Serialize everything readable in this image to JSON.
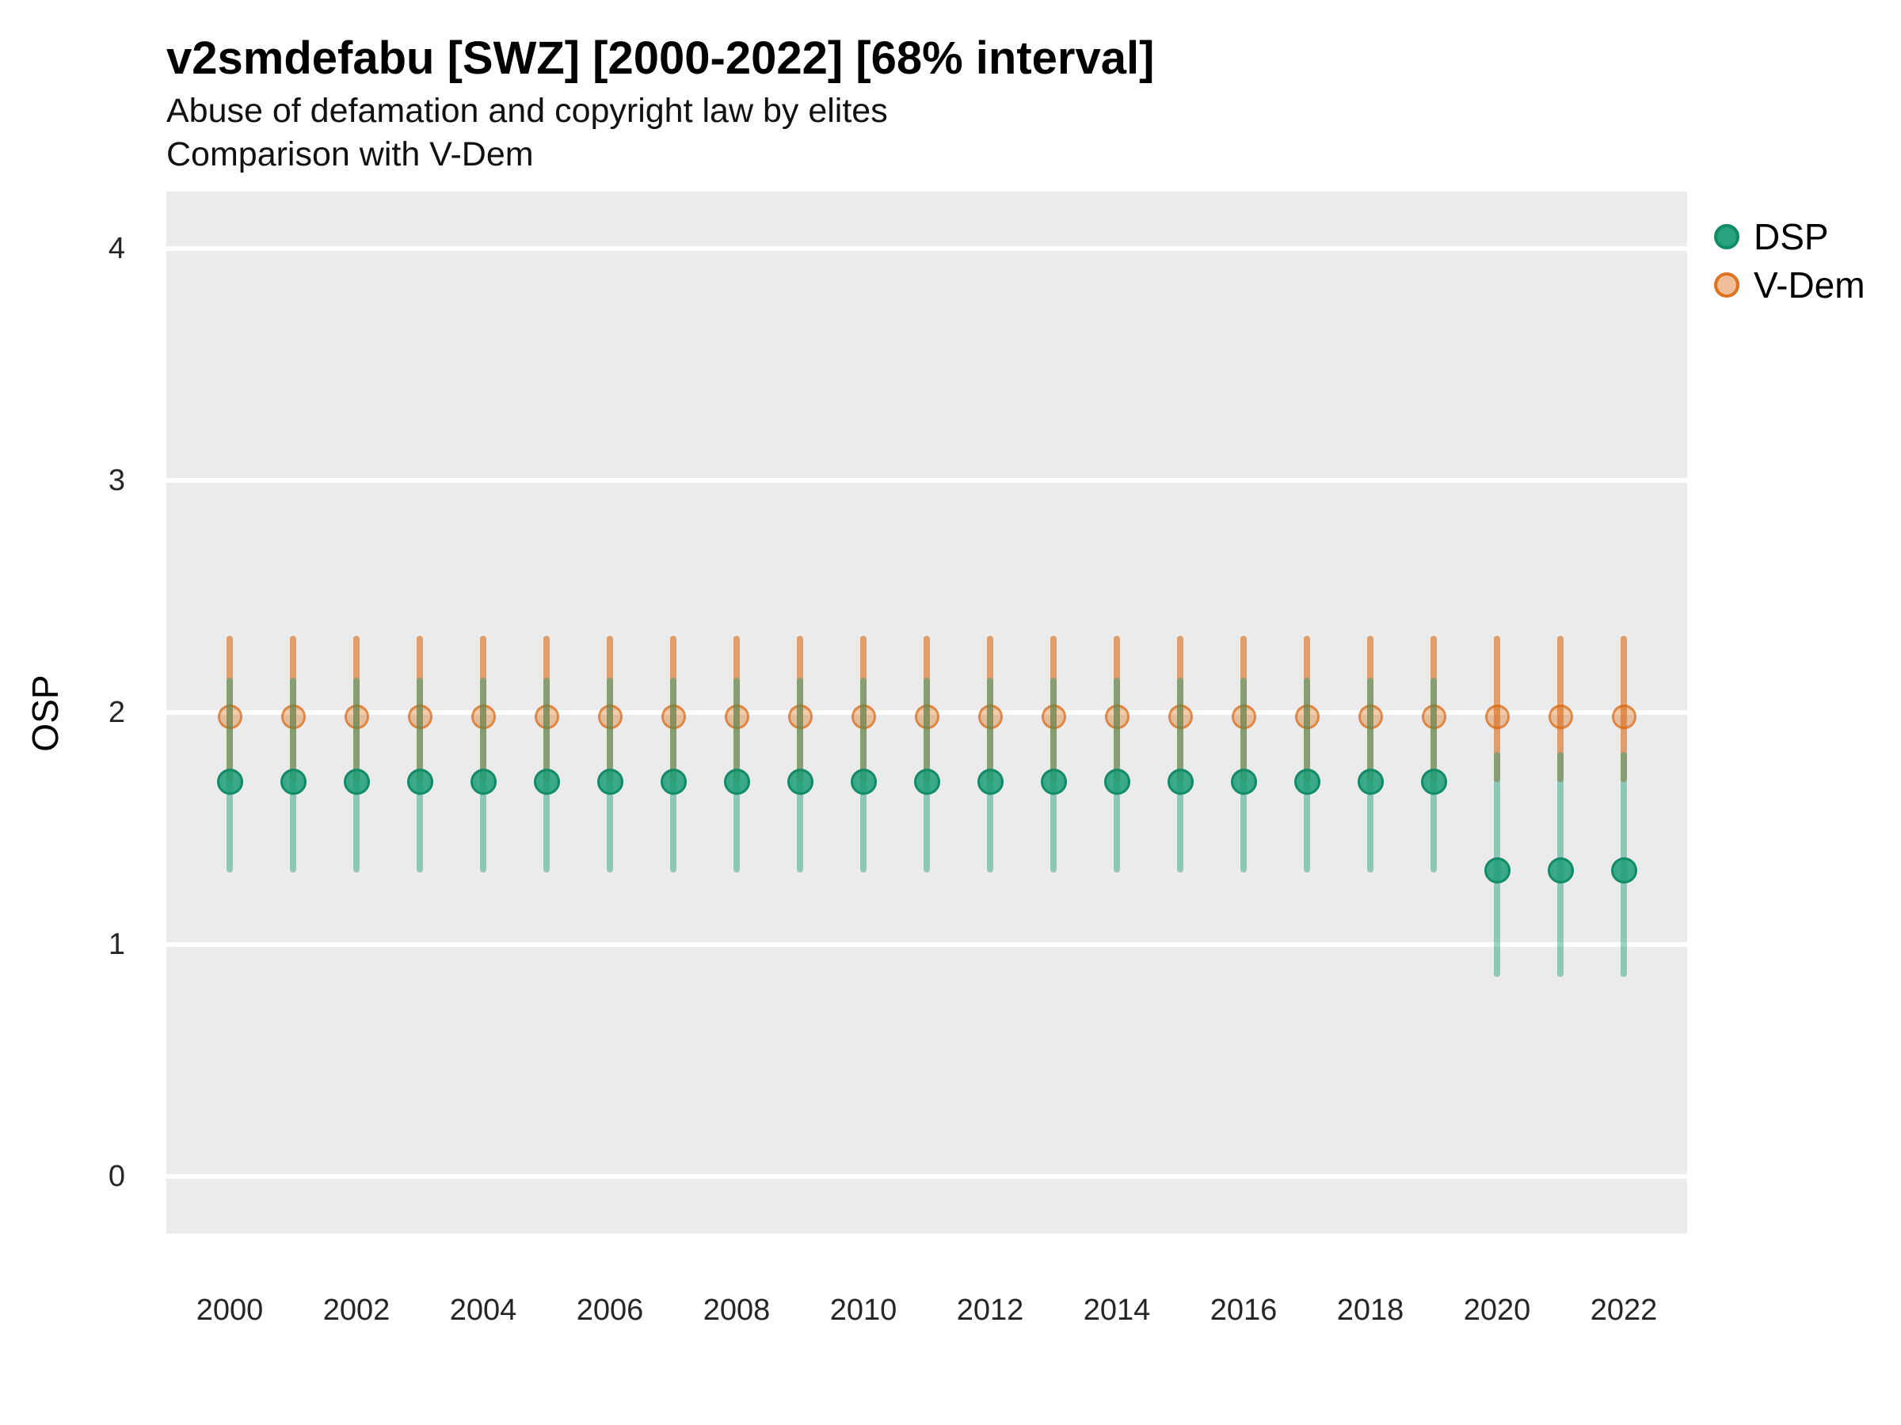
{
  "title": "v2smdefabu [SWZ] [2000-2022] [68% interval]",
  "subtitle1": "Abuse of defamation and copyright law by elites",
  "subtitle2": "Comparison with V-Dem",
  "y_axis_title": "OSP",
  "legend": {
    "position": "right",
    "items": [
      {
        "label": "DSP"
      },
      {
        "label": "V-Dem"
      }
    ]
  },
  "colors": {
    "dsp": "#1B9E77",
    "dsp_point_ring": "#118A66",
    "vdem": "#D95F02",
    "panel_bg": "#EBEBEB",
    "gridline": "#FFFFFF",
    "title_text": "#000000",
    "tick_text": "#262626"
  },
  "chart_data": {
    "type": "pointrange",
    "title": "v2smdefabu [SWZ] [2000-2022] [68% interval]",
    "subtitle": [
      "Abuse of defamation and copyright law by elites",
      "Comparison with V-Dem"
    ],
    "interval": "68%",
    "xlabel": "",
    "ylabel": "OSP",
    "ylim": [
      -0.25,
      4.27
    ],
    "y_ticks": [
      0,
      1,
      2,
      3,
      4
    ],
    "x_tick_labels": [
      "2000",
      "2002",
      "2004",
      "2006",
      "2008",
      "2010",
      "2012",
      "2014",
      "2016",
      "2018",
      "2020",
      "2022"
    ],
    "grid": "horizontal major gridlines, white on grey panel",
    "legend_position": "right",
    "series": [
      {
        "name": "DSP",
        "color": "#1B9E77",
        "points": [
          {
            "year": 2000,
            "est": 1.7,
            "lo": 1.31,
            "hi": 2.15
          },
          {
            "year": 2001,
            "est": 1.7,
            "lo": 1.31,
            "hi": 2.15
          },
          {
            "year": 2002,
            "est": 1.7,
            "lo": 1.31,
            "hi": 2.15
          },
          {
            "year": 2003,
            "est": 1.7,
            "lo": 1.31,
            "hi": 2.15
          },
          {
            "year": 2004,
            "est": 1.7,
            "lo": 1.31,
            "hi": 2.15
          },
          {
            "year": 2005,
            "est": 1.7,
            "lo": 1.31,
            "hi": 2.15
          },
          {
            "year": 2006,
            "est": 1.7,
            "lo": 1.31,
            "hi": 2.15
          },
          {
            "year": 2007,
            "est": 1.7,
            "lo": 1.31,
            "hi": 2.15
          },
          {
            "year": 2008,
            "est": 1.7,
            "lo": 1.31,
            "hi": 2.15
          },
          {
            "year": 2009,
            "est": 1.7,
            "lo": 1.31,
            "hi": 2.15
          },
          {
            "year": 2010,
            "est": 1.7,
            "lo": 1.31,
            "hi": 2.15
          },
          {
            "year": 2011,
            "est": 1.7,
            "lo": 1.31,
            "hi": 2.15
          },
          {
            "year": 2012,
            "est": 1.7,
            "lo": 1.31,
            "hi": 2.15
          },
          {
            "year": 2013,
            "est": 1.7,
            "lo": 1.31,
            "hi": 2.15
          },
          {
            "year": 2014,
            "est": 1.7,
            "lo": 1.31,
            "hi": 2.15
          },
          {
            "year": 2015,
            "est": 1.7,
            "lo": 1.31,
            "hi": 2.15
          },
          {
            "year": 2016,
            "est": 1.7,
            "lo": 1.31,
            "hi": 2.15
          },
          {
            "year": 2017,
            "est": 1.7,
            "lo": 1.31,
            "hi": 2.15
          },
          {
            "year": 2018,
            "est": 1.7,
            "lo": 1.31,
            "hi": 2.15
          },
          {
            "year": 2019,
            "est": 1.7,
            "lo": 1.31,
            "hi": 2.15
          },
          {
            "year": 2020,
            "est": 1.32,
            "lo": 0.86,
            "hi": 1.83
          },
          {
            "year": 2021,
            "est": 1.32,
            "lo": 0.86,
            "hi": 1.83
          },
          {
            "year": 2022,
            "est": 1.32,
            "lo": 0.86,
            "hi": 1.83
          }
        ]
      },
      {
        "name": "V-Dem",
        "color": "#D95F02",
        "points": [
          {
            "year": 2000,
            "est": 1.98,
            "lo": 1.7,
            "hi": 2.33
          },
          {
            "year": 2001,
            "est": 1.98,
            "lo": 1.7,
            "hi": 2.33
          },
          {
            "year": 2002,
            "est": 1.98,
            "lo": 1.7,
            "hi": 2.33
          },
          {
            "year": 2003,
            "est": 1.98,
            "lo": 1.7,
            "hi": 2.33
          },
          {
            "year": 2004,
            "est": 1.98,
            "lo": 1.7,
            "hi": 2.33
          },
          {
            "year": 2005,
            "est": 1.98,
            "lo": 1.7,
            "hi": 2.33
          },
          {
            "year": 2006,
            "est": 1.98,
            "lo": 1.7,
            "hi": 2.33
          },
          {
            "year": 2007,
            "est": 1.98,
            "lo": 1.7,
            "hi": 2.33
          },
          {
            "year": 2008,
            "est": 1.98,
            "lo": 1.7,
            "hi": 2.33
          },
          {
            "year": 2009,
            "est": 1.98,
            "lo": 1.7,
            "hi": 2.33
          },
          {
            "year": 2010,
            "est": 1.98,
            "lo": 1.7,
            "hi": 2.33
          },
          {
            "year": 2011,
            "est": 1.98,
            "lo": 1.7,
            "hi": 2.33
          },
          {
            "year": 2012,
            "est": 1.98,
            "lo": 1.7,
            "hi": 2.33
          },
          {
            "year": 2013,
            "est": 1.98,
            "lo": 1.7,
            "hi": 2.33
          },
          {
            "year": 2014,
            "est": 1.98,
            "lo": 1.7,
            "hi": 2.33
          },
          {
            "year": 2015,
            "est": 1.98,
            "lo": 1.7,
            "hi": 2.33
          },
          {
            "year": 2016,
            "est": 1.98,
            "lo": 1.7,
            "hi": 2.33
          },
          {
            "year": 2017,
            "est": 1.98,
            "lo": 1.7,
            "hi": 2.33
          },
          {
            "year": 2018,
            "est": 1.98,
            "lo": 1.7,
            "hi": 2.33
          },
          {
            "year": 2019,
            "est": 1.98,
            "lo": 1.7,
            "hi": 2.33
          },
          {
            "year": 2020,
            "est": 1.98,
            "lo": 1.7,
            "hi": 2.33
          },
          {
            "year": 2021,
            "est": 1.98,
            "lo": 1.7,
            "hi": 2.33
          },
          {
            "year": 2022,
            "est": 1.98,
            "lo": 1.7,
            "hi": 2.33
          }
        ]
      }
    ]
  }
}
